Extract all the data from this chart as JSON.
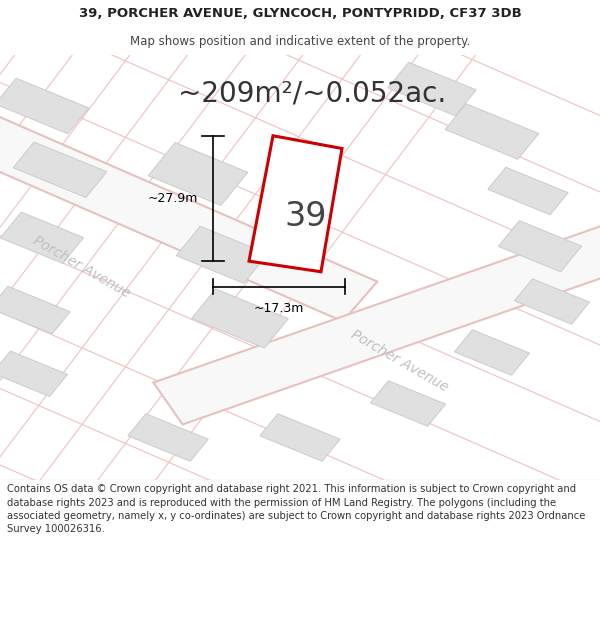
{
  "title_line1": "39, PORCHER AVENUE, GLYNCOCH, PONTYPRIDD, CF37 3DB",
  "title_line2": "Map shows position and indicative extent of the property.",
  "area_text": "~209m²/~0.052ac.",
  "label_39": "39",
  "dim_width": "~17.3m",
  "dim_height": "~27.9m",
  "street_label1": "Porcher Avenue",
  "street_label2": "Porcher Avenue",
  "footer_text": "Contains OS data © Crown copyright and database right 2021. This information is subject to Crown copyright and database rights 2023 and is reproduced with the permission of HM Land Registry. The polygons (including the associated geometry, namely x, y co-ordinates) are subject to Crown copyright and database rights 2023 Ordnance Survey 100026316.",
  "bg_color": "#ffffff",
  "map_bg": "#f7f7f7",
  "plot_fill": "#ffffff",
  "plot_outline": "#cc0000",
  "building_color": "#e0e0e0",
  "building_outline": "#cccccc",
  "road_fill": "#f0f0f0",
  "road_outline": "#e8c0c0",
  "grid_color": "#f0c0c0",
  "dim_color": "#000000",
  "street_text_color": "#c0c0c0",
  "title_fontsize": 9.5,
  "subtitle_fontsize": 8.5,
  "area_fontsize": 20,
  "label_fontsize": 24,
  "dim_fontsize": 9,
  "street_fontsize": 10,
  "footer_fontsize": 7.2
}
